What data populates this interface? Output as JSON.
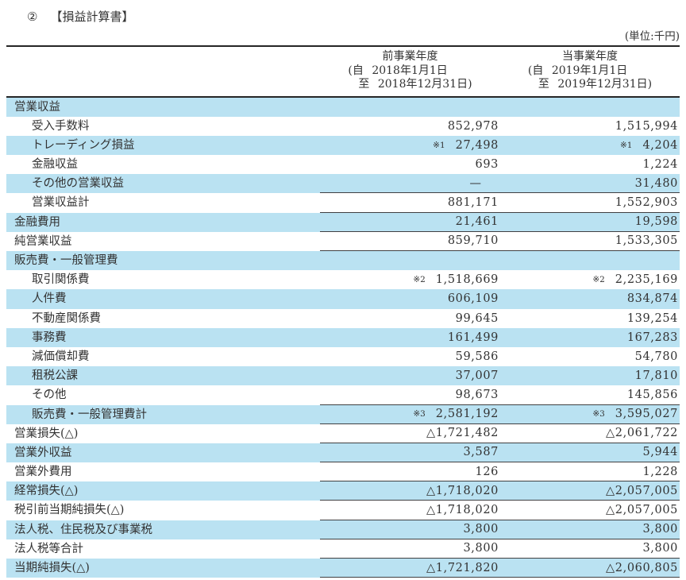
{
  "page": {
    "title_prefix": "②",
    "title": "【損益計算書】",
    "unit_note": "(単位:千円)"
  },
  "columns": [
    {
      "name": "前事業年度",
      "from": "(自 2018年1月1日",
      "to": "至 2018年12月31日)"
    },
    {
      "name": "当事業年度",
      "from": "(自 2019年1月1日",
      "to": "至 2019年12月31日)"
    }
  ],
  "rows": [
    {
      "label": "営業収益",
      "indent": 0,
      "prev": "",
      "curr": "",
      "rule": false
    },
    {
      "label": "受入手数料",
      "indent": 1,
      "prev": "852,978",
      "curr": "1,515,994",
      "rule": false
    },
    {
      "label": "トレーディング損益",
      "indent": 1,
      "prev": "27,498",
      "curr": "4,204",
      "note": "※1",
      "rule": false
    },
    {
      "label": "金融収益",
      "indent": 1,
      "prev": "693",
      "curr": "1,224",
      "rule": false
    },
    {
      "label": "その他の営業収益",
      "indent": 1,
      "prev": "—",
      "curr": "31,480",
      "rule": true
    },
    {
      "label": "営業収益計",
      "indent": 1,
      "prev": "881,171",
      "curr": "1,552,903",
      "rule": true
    },
    {
      "label": "金融費用",
      "indent": 0,
      "prev": "21,461",
      "curr": "19,598",
      "rule": true
    },
    {
      "label": "純営業収益",
      "indent": 0,
      "prev": "859,710",
      "curr": "1,533,305",
      "rule": true
    },
    {
      "label": "販売費・一般管理費",
      "indent": 0,
      "prev": "",
      "curr": "",
      "rule": false
    },
    {
      "label": "取引関係費",
      "indent": 1,
      "prev": "1,518,669",
      "curr": "2,235,169",
      "note": "※2",
      "rule": false
    },
    {
      "label": "人件費",
      "indent": 1,
      "prev": "606,109",
      "curr": "834,874",
      "rule": false
    },
    {
      "label": "不動産関係費",
      "indent": 1,
      "prev": "99,645",
      "curr": "139,254",
      "rule": false
    },
    {
      "label": "事務費",
      "indent": 1,
      "prev": "161,499",
      "curr": "167,283",
      "rule": false
    },
    {
      "label": "減価償却費",
      "indent": 1,
      "prev": "59,586",
      "curr": "54,780",
      "rule": false
    },
    {
      "label": "租税公課",
      "indent": 1,
      "prev": "37,007",
      "curr": "17,810",
      "rule": false
    },
    {
      "label": "その他",
      "indent": 1,
      "prev": "98,673",
      "curr": "145,856",
      "rule": true
    },
    {
      "label": "販売費・一般管理費計",
      "indent": 1,
      "prev": "2,581,192",
      "curr": "3,595,027",
      "note": "※3",
      "rule": true
    },
    {
      "label": "営業損失(△)",
      "indent": 0,
      "prev": "△1,721,482",
      "curr": "△2,061,722",
      "rule": true
    },
    {
      "label": "営業外収益",
      "indent": 0,
      "prev": "3,587",
      "curr": "5,944",
      "rule": true
    },
    {
      "label": "営業外費用",
      "indent": 0,
      "prev": "126",
      "curr": "1,228",
      "rule": true
    },
    {
      "label": "経常損失(△)",
      "indent": 0,
      "prev": "△1,718,020",
      "curr": "△2,057,005",
      "rule": true
    },
    {
      "label": "税引前当期純損失(△)",
      "indent": 0,
      "prev": "△1,718,020",
      "curr": "△2,057,005",
      "rule": true
    },
    {
      "label": "法人税、住民税及び事業税",
      "indent": 0,
      "prev": "3,800",
      "curr": "3,800",
      "rule": true
    },
    {
      "label": "法人税等合計",
      "indent": 0,
      "prev": "3,800",
      "curr": "3,800",
      "rule": true
    },
    {
      "label": "当期純損失(△)",
      "indent": 0,
      "prev": "△1,721,820",
      "curr": "△2,060,805",
      "rule": true
    }
  ]
}
